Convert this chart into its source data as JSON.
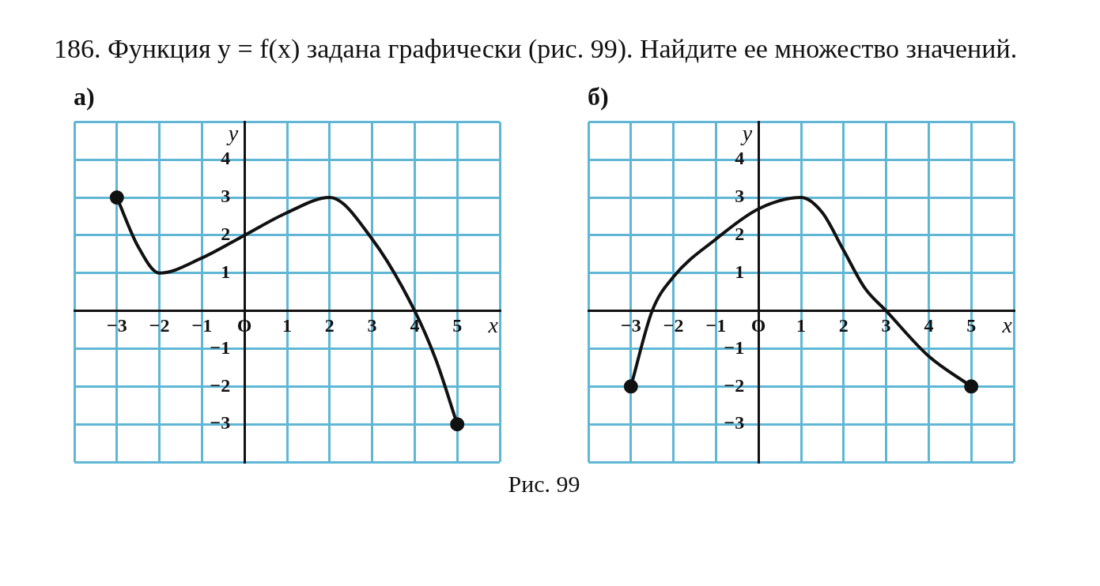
{
  "chart_data": [
    {
      "type": "line",
      "title": "а)",
      "xlabel": "x",
      "ylabel": "y",
      "xlim": [
        -4,
        6
      ],
      "ylim": [
        -4,
        5
      ],
      "grid": true,
      "legend": false,
      "xticks": [
        {
          "value": -4,
          "label": null
        },
        -3,
        -2,
        -1,
        {
          "value": 0,
          "label": "O"
        },
        1,
        2,
        3,
        4,
        5,
        {
          "value": 6,
          "label": null
        }
      ],
      "yticks": [
        {
          "value": -4,
          "label": null
        },
        -3,
        -2,
        -1,
        {
          "value": 0,
          "label": null
        },
        1,
        2,
        3,
        4,
        {
          "value": 5,
          "label": null
        }
      ],
      "series": [
        {
          "color": "#111111",
          "marker": "none",
          "line_style": "solid",
          "x": [
            -3,
            -2.5,
            -2,
            -1,
            0,
            1,
            2,
            3,
            4,
            4.5,
            5
          ],
          "values": [
            3,
            1.7,
            1,
            1.4,
            2,
            2.6,
            3,
            1.9,
            0,
            -1.3,
            -3
          ]
        },
        {
          "type": "scatter",
          "color": "#111111",
          "marker": "circle",
          "x": [
            -3,
            5
          ],
          "values": [
            3,
            -3
          ]
        }
      ],
      "annotations": [
        "186. Функция y = f(x) задана графически (рис. 99). Найдите ее множество значений."
      ]
    },
    {
      "type": "line",
      "title": "б)",
      "xlabel": "x",
      "ylabel": "y",
      "xlim": [
        -4,
        6
      ],
      "ylim": [
        -4,
        5
      ],
      "grid": true,
      "legend": false,
      "xticks": [
        {
          "value": -4,
          "label": null
        },
        -3,
        -2,
        -1,
        {
          "value": 0,
          "label": "O"
        },
        1,
        2,
        3,
        4,
        5,
        {
          "value": 6,
          "label": null
        }
      ],
      "yticks": [
        {
          "value": -4,
          "label": null
        },
        -3,
        -2,
        -1,
        {
          "value": 0,
          "label": null
        },
        1,
        2,
        3,
        4,
        {
          "value": 5,
          "label": null
        }
      ],
      "series": [
        {
          "color": "#111111",
          "marker": "none",
          "line_style": "solid",
          "x": [
            -3,
            -2.5,
            -2,
            -1,
            0,
            1,
            1.5,
            2,
            2.5,
            3,
            4,
            5
          ],
          "values": [
            -2,
            0,
            0.9,
            1.9,
            2.7,
            3,
            2.6,
            1.6,
            0.6,
            0,
            -1.2,
            -2
          ]
        },
        {
          "type": "scatter",
          "color": "#111111",
          "marker": "circle",
          "x": [
            -3,
            5
          ],
          "values": [
            -2,
            -2
          ]
        }
      ],
      "annotations": [
        "Рис. 99"
      ]
    }
  ]
}
